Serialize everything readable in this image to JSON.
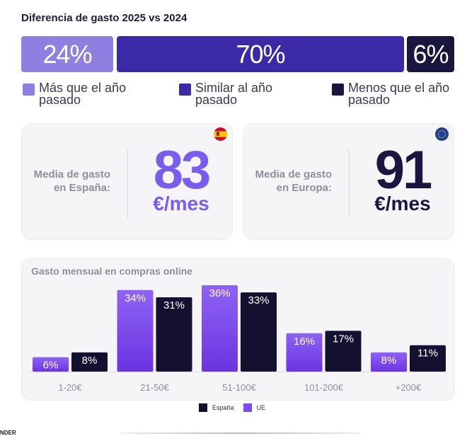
{
  "title": "Diferencia de gasto 2025 vs 2024",
  "split": [
    {
      "value": "24%",
      "label": "Más que el año pasado",
      "color": "#8e7fe0"
    },
    {
      "value": "70%",
      "label": "Similar al año pasado",
      "color": "#3a2aa8"
    },
    {
      "value": "6%",
      "label": "Menos que el año pasado",
      "color": "#1b1640"
    }
  ],
  "cards": [
    {
      "label_line1": "Media de gasto",
      "label_line2": "en España:",
      "value": "83",
      "unit": "€/mes",
      "color": "#7b5cf0",
      "flag": "spain-flag-icon"
    },
    {
      "label_line1": "Media de gasto",
      "label_line2": "en Europa:",
      "value": "91",
      "unit": "€/mes",
      "color": "#1a1640",
      "flag": "eu-flag-icon"
    }
  ],
  "chart_data": {
    "type": "bar",
    "title": "Gasto mensual en compras online",
    "categories": [
      "1-20€",
      "21-50€",
      "51-100€",
      "101-200€",
      "+200€"
    ],
    "series": [
      {
        "name": "UE",
        "values": [
          6,
          34,
          36,
          16,
          8
        ],
        "color": "#7a4cf0"
      },
      {
        "name": "España",
        "values": [
          8,
          31,
          33,
          17,
          11
        ],
        "color": "#141130"
      }
    ],
    "value_suffix": "%",
    "ylim": [
      0,
      36
    ],
    "legend": "bottom"
  },
  "legend_bottom": [
    {
      "label": "España",
      "color": "#141130"
    },
    {
      "label": "UE",
      "color": "#7a4cf0"
    }
  ],
  "footer": {
    "logo": "NDER"
  }
}
